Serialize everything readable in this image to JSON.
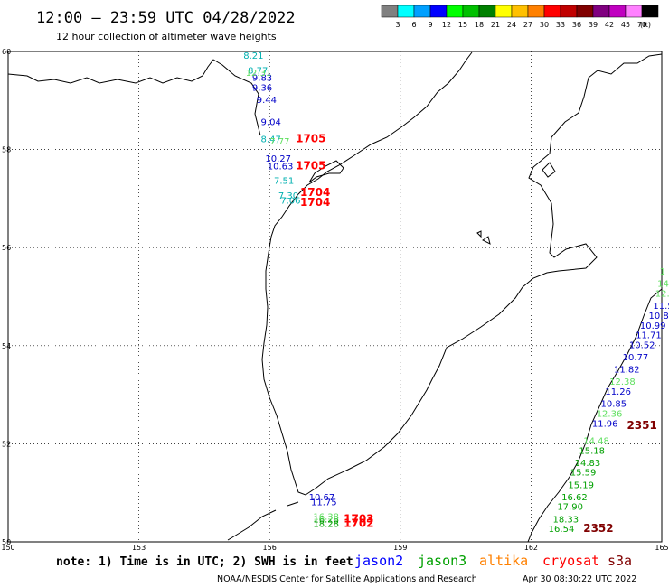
{
  "header": {
    "title": "12:00 – 23:59 UTC 04/28/2022",
    "subtitle": "12 hour collection of altimeter wave heights"
  },
  "legend": {
    "colors": [
      "#808080",
      "#00ffff",
      "#00a0ff",
      "#0000ff",
      "#00ff00",
      "#00c000",
      "#008000",
      "#ffff00",
      "#ffc000",
      "#ff8000",
      "#ff0000",
      "#c00000",
      "#800000",
      "#800080",
      "#c000c0",
      "#ff80ff",
      "#000000"
    ],
    "labels": [
      "3",
      "6",
      "9",
      "12",
      "15",
      "18",
      "21",
      "24",
      "27",
      "30",
      "33",
      "36",
      "39",
      "42",
      "45",
      "70",
      "(ft)"
    ]
  },
  "chart_data": {
    "type": "scatter",
    "xlim": [
      150,
      165
    ],
    "ylim": [
      50,
      60
    ],
    "x_ticks": [
      "150",
      "153",
      "156",
      "159",
      "162",
      "165"
    ],
    "y_ticks": [
      "60",
      "58",
      "56",
      "54",
      "52",
      "50"
    ],
    "grid": true,
    "legend_position": "top-right",
    "series": [
      {
        "name": "jason2",
        "color": "#0000c8",
        "points": [
          {
            "x": 155.6,
            "y": 59.4,
            "v": "9.83"
          },
          {
            "x": 155.6,
            "y": 59.2,
            "v": "9.36"
          },
          {
            "x": 155.7,
            "y": 58.95,
            "v": "9.44"
          },
          {
            "x": 155.8,
            "y": 58.5,
            "v": "9.04"
          },
          {
            "x": 155.9,
            "y": 57.75,
            "v": "10.27"
          },
          {
            "x": 155.95,
            "y": 57.6,
            "v": "10.63"
          },
          {
            "x": 156.9,
            "y": 50.85,
            "v": "10.67"
          },
          {
            "x": 156.95,
            "y": 50.75,
            "v": "11.75"
          },
          {
            "x": 164.8,
            "y": 54.75,
            "v": "11.50"
          },
          {
            "x": 164.7,
            "y": 54.55,
            "v": "10.80"
          },
          {
            "x": 164.5,
            "y": 54.35,
            "v": "10.99"
          },
          {
            "x": 164.4,
            "y": 54.15,
            "v": "11.71"
          },
          {
            "x": 164.25,
            "y": 53.95,
            "v": "10.52"
          },
          {
            "x": 164.1,
            "y": 53.7,
            "v": "10.77"
          },
          {
            "x": 163.9,
            "y": 53.45,
            "v": "11.82"
          },
          {
            "x": 163.7,
            "y": 53.0,
            "v": "11.26"
          },
          {
            "x": 163.6,
            "y": 52.75,
            "v": "10.85"
          },
          {
            "x": 163.4,
            "y": 52.35,
            "v": "11.96"
          }
        ]
      },
      {
        "name": "jason3",
        "color": "#00a000",
        "points": [
          {
            "x": 157.0,
            "y": 50.4,
            "v": "16.28"
          },
          {
            "x": 157.0,
            "y": 50.3,
            "v": "18.28"
          },
          {
            "x": 163.1,
            "y": 51.8,
            "v": "15.18"
          },
          {
            "x": 163.0,
            "y": 51.55,
            "v": "14.83"
          },
          {
            "x": 162.9,
            "y": 51.35,
            "v": "15.59"
          },
          {
            "x": 162.85,
            "y": 51.1,
            "v": "15.19"
          },
          {
            "x": 162.7,
            "y": 50.85,
            "v": "16.62"
          },
          {
            "x": 162.6,
            "y": 50.65,
            "v": "17.90"
          },
          {
            "x": 162.5,
            "y": 50.4,
            "v": "18.33"
          },
          {
            "x": 162.4,
            "y": 50.2,
            "v": "16.54"
          }
        ]
      },
      {
        "name": "altika",
        "color": "#ff8000",
        "points": []
      },
      {
        "name": "cryosat",
        "color": "#ff0000",
        "points": []
      },
      {
        "name": "s3a",
        "color": "#800000",
        "points": []
      },
      {
        "name": "",
        "color": "#00b0b0",
        "points": [
          {
            "x": 155.4,
            "y": 59.85,
            "v": "8.21"
          },
          {
            "x": 155.5,
            "y": 59.55,
            "v": "8.77"
          },
          {
            "x": 155.8,
            "y": 58.15,
            "v": "8.47"
          },
          {
            "x": 156.1,
            "y": 57.3,
            "v": "7.51"
          },
          {
            "x": 156.2,
            "y": 57.0,
            "v": "7.30"
          },
          {
            "x": 156.25,
            "y": 56.9,
            "v": "7.06"
          }
        ]
      },
      {
        "name": "",
        "color": "#60e060",
        "points": [
          {
            "x": 155.45,
            "y": 59.5,
            "v": "12.31"
          },
          {
            "x": 156.0,
            "y": 58.1,
            "v": "7.77"
          },
          {
            "x": 157.0,
            "y": 50.45,
            "v": "16.38"
          },
          {
            "x": 164.9,
            "y": 55.2,
            "v": "14"
          },
          {
            "x": 164.85,
            "y": 55.0,
            "v": "12.0"
          },
          {
            "x": 163.8,
            "y": 53.2,
            "v": "12.38"
          },
          {
            "x": 163.5,
            "y": 52.55,
            "v": "12.36"
          },
          {
            "x": 163.2,
            "y": 52.0,
            "v": "14.48"
          },
          {
            "x": 164.95,
            "y": 55.45,
            "v": "1"
          }
        ]
      }
    ],
    "pass_labels": [
      {
        "x": 156.6,
        "y": 58.15,
        "text": "1705",
        "color": "#ff0000"
      },
      {
        "x": 156.6,
        "y": 57.6,
        "text": "1705",
        "color": "#ff0000"
      },
      {
        "x": 156.7,
        "y": 57.05,
        "text": "1704",
        "color": "#ff0000"
      },
      {
        "x": 156.7,
        "y": 56.85,
        "text": "1704",
        "color": "#ff0000"
      },
      {
        "x": 157.7,
        "y": 50.4,
        "text": "1703",
        "color": "#ff0000"
      },
      {
        "x": 157.7,
        "y": 50.3,
        "text": "1702",
        "color": "#ff0000"
      },
      {
        "x": 164.2,
        "y": 52.3,
        "text": "2351",
        "color": "#800000"
      },
      {
        "x": 163.2,
        "y": 50.2,
        "text": "2352",
        "color": "#800000"
      }
    ]
  },
  "footer": {
    "note": "note: 1) Time is in UTC; 2) SWH is in feet",
    "missions": [
      {
        "name": "jason2",
        "color": "#0000ff"
      },
      {
        "name": "jason3",
        "color": "#00a000"
      },
      {
        "name": "altika",
        "color": "#ff8000"
      },
      {
        "name": "cryosat",
        "color": "#ff0000"
      },
      {
        "name": "s3a",
        "color": "#800000"
      }
    ],
    "credit": "NOAA/NESDIS Center for Satellite Applications and Research",
    "generated": "Apr 30 08:30:22 UTC 2022"
  }
}
